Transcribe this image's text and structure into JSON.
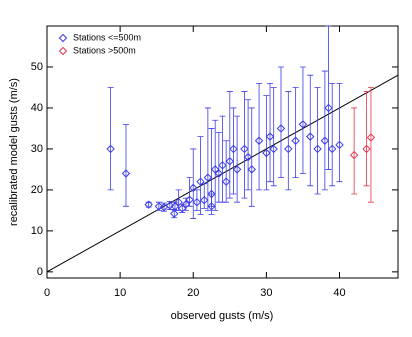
{
  "chart_data": {
    "type": "scatter",
    "x_label": "observed gusts (m/s)",
    "y_label": "recalibrated model gusts (m/s)",
    "xlim": [
      0,
      48
    ],
    "ylim": [
      -1.5,
      60
    ],
    "xticks": [
      0,
      10,
      20,
      30,
      40
    ],
    "yticks": [
      0,
      10,
      20,
      30,
      40,
      50
    ],
    "reference_line": "identity",
    "legend_position": "upper left",
    "series": [
      {
        "name": "Stations <=500m",
        "color": "#3b3bea",
        "x": [
          8.7,
          10.8,
          13.9,
          15.3,
          16.0,
          16.8,
          17.4,
          17.5,
          18.0,
          18.5,
          19.0,
          19.5,
          20.0,
          20.5,
          21.0,
          21.5,
          22.0,
          22.5,
          22.5,
          23.0,
          23.5,
          24.0,
          24.5,
          25.0,
          25.5,
          26.0,
          27.0,
          27.5,
          28.0,
          29.0,
          30.0,
          30.5,
          31.0,
          32.0,
          33.0,
          34.0,
          35.0,
          36.0,
          37.0,
          38.0,
          38.5,
          39.0,
          40.0
        ],
        "values": [
          30,
          24,
          16.4,
          16,
          15.8,
          16.2,
          14.2,
          16,
          17,
          15.5,
          16.5,
          17.6,
          20.5,
          17,
          22,
          17.5,
          23,
          19,
          16,
          25,
          24,
          26,
          22,
          27,
          30,
          25,
          30,
          28,
          25,
          32,
          29,
          33,
          30,
          35,
          30,
          32,
          36,
          33,
          30,
          32,
          40,
          30,
          31
        ],
        "error_minus": [
          10,
          8,
          0.6,
          1,
          1,
          1,
          1,
          1,
          2,
          1,
          1.5,
          1.6,
          7.5,
          2,
          8,
          2,
          8,
          3,
          2,
          10,
          7,
          9,
          5,
          9,
          11,
          8,
          12,
          8,
          9,
          12,
          9,
          11,
          9,
          12,
          10,
          9,
          12,
          12,
          11,
          12,
          15,
          9,
          9
        ],
        "error_plus": [
          15,
          12,
          0.6,
          1,
          1,
          1,
          1,
          1,
          3,
          1,
          1.5,
          5.4,
          9.5,
          3,
          11,
          4,
          17,
          16,
          3,
          12,
          10,
          12,
          10,
          17,
          10,
          13,
          14,
          14,
          15,
          14,
          14,
          13,
          15,
          15,
          14,
          13,
          14,
          15,
          15,
          17,
          20,
          16,
          15
        ]
      },
      {
        "name": "Stations >500m",
        "color": "#e8344a",
        "x": [
          42.0,
          43.7,
          44.3
        ],
        "values": [
          28.5,
          30,
          32.8
        ],
        "error_minus": [
          9.5,
          9,
          15.8
        ],
        "error_plus": [
          11.5,
          14,
          12.2
        ]
      }
    ]
  }
}
